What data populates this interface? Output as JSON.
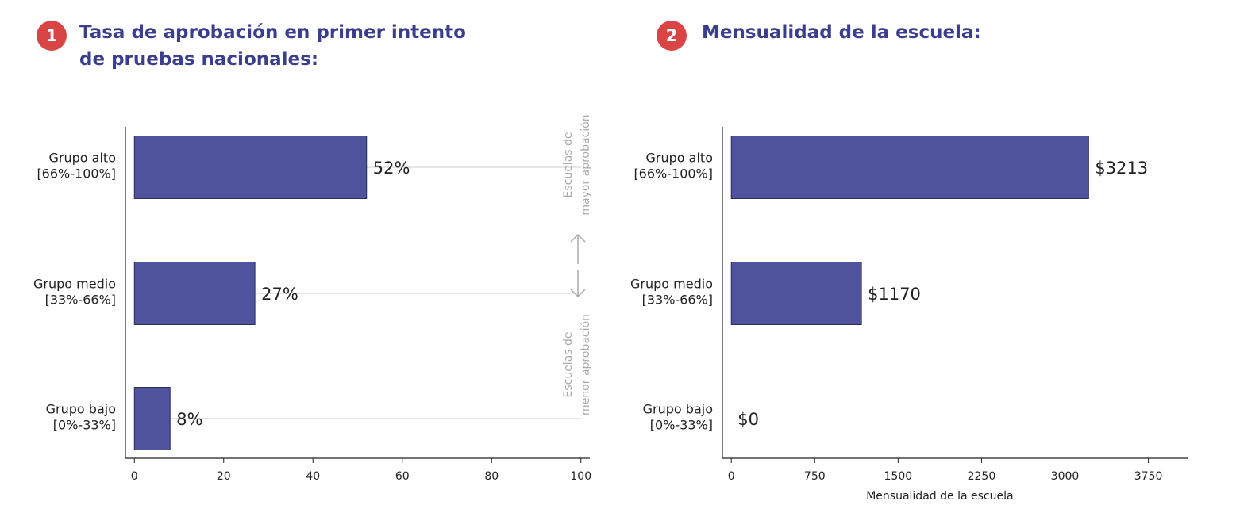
{
  "chart_data": [
    {
      "type": "barh",
      "badge": "1",
      "title": "Tasa de aprobación en primer intento de pruebas nacionales:",
      "categories": [
        [
          "Grupo alto",
          "[66%-100%]"
        ],
        [
          "Grupo medio",
          "[33%-66%]"
        ],
        [
          "Grupo bajo",
          "[0%-33%]"
        ]
      ],
      "values": [
        52,
        27,
        8
      ],
      "value_labels": [
        "52%",
        "27%",
        "8%"
      ],
      "color": "#4f529c",
      "xlim": [
        -2,
        102
      ],
      "xticks": [
        0,
        20,
        40,
        60,
        80,
        100
      ],
      "grid": true,
      "annotations": [
        [
          "Escuelas de",
          "mayor aprobación"
        ],
        [
          "Escuelas de",
          "menor aprobación"
        ]
      ]
    },
    {
      "type": "barh",
      "badge": "2",
      "title": "Mensualidad de la escuela:",
      "categories": [
        [
          "Grupo alto",
          "[66%-100%]"
        ],
        [
          "Grupo medio",
          "[33%-66%]"
        ],
        [
          "Grupo bajo",
          "[0%-33%]"
        ]
      ],
      "values": [
        3213,
        1170,
        0
      ],
      "value_labels": [
        "$3213",
        "$1170",
        "$0"
      ],
      "color": "#4f529c",
      "xlim": [
        -80,
        4110
      ],
      "xticks": [
        0,
        750,
        1500,
        2250,
        3000,
        3750
      ],
      "grid": false,
      "xlabel": "Mensualidad de la escuela"
    }
  ]
}
